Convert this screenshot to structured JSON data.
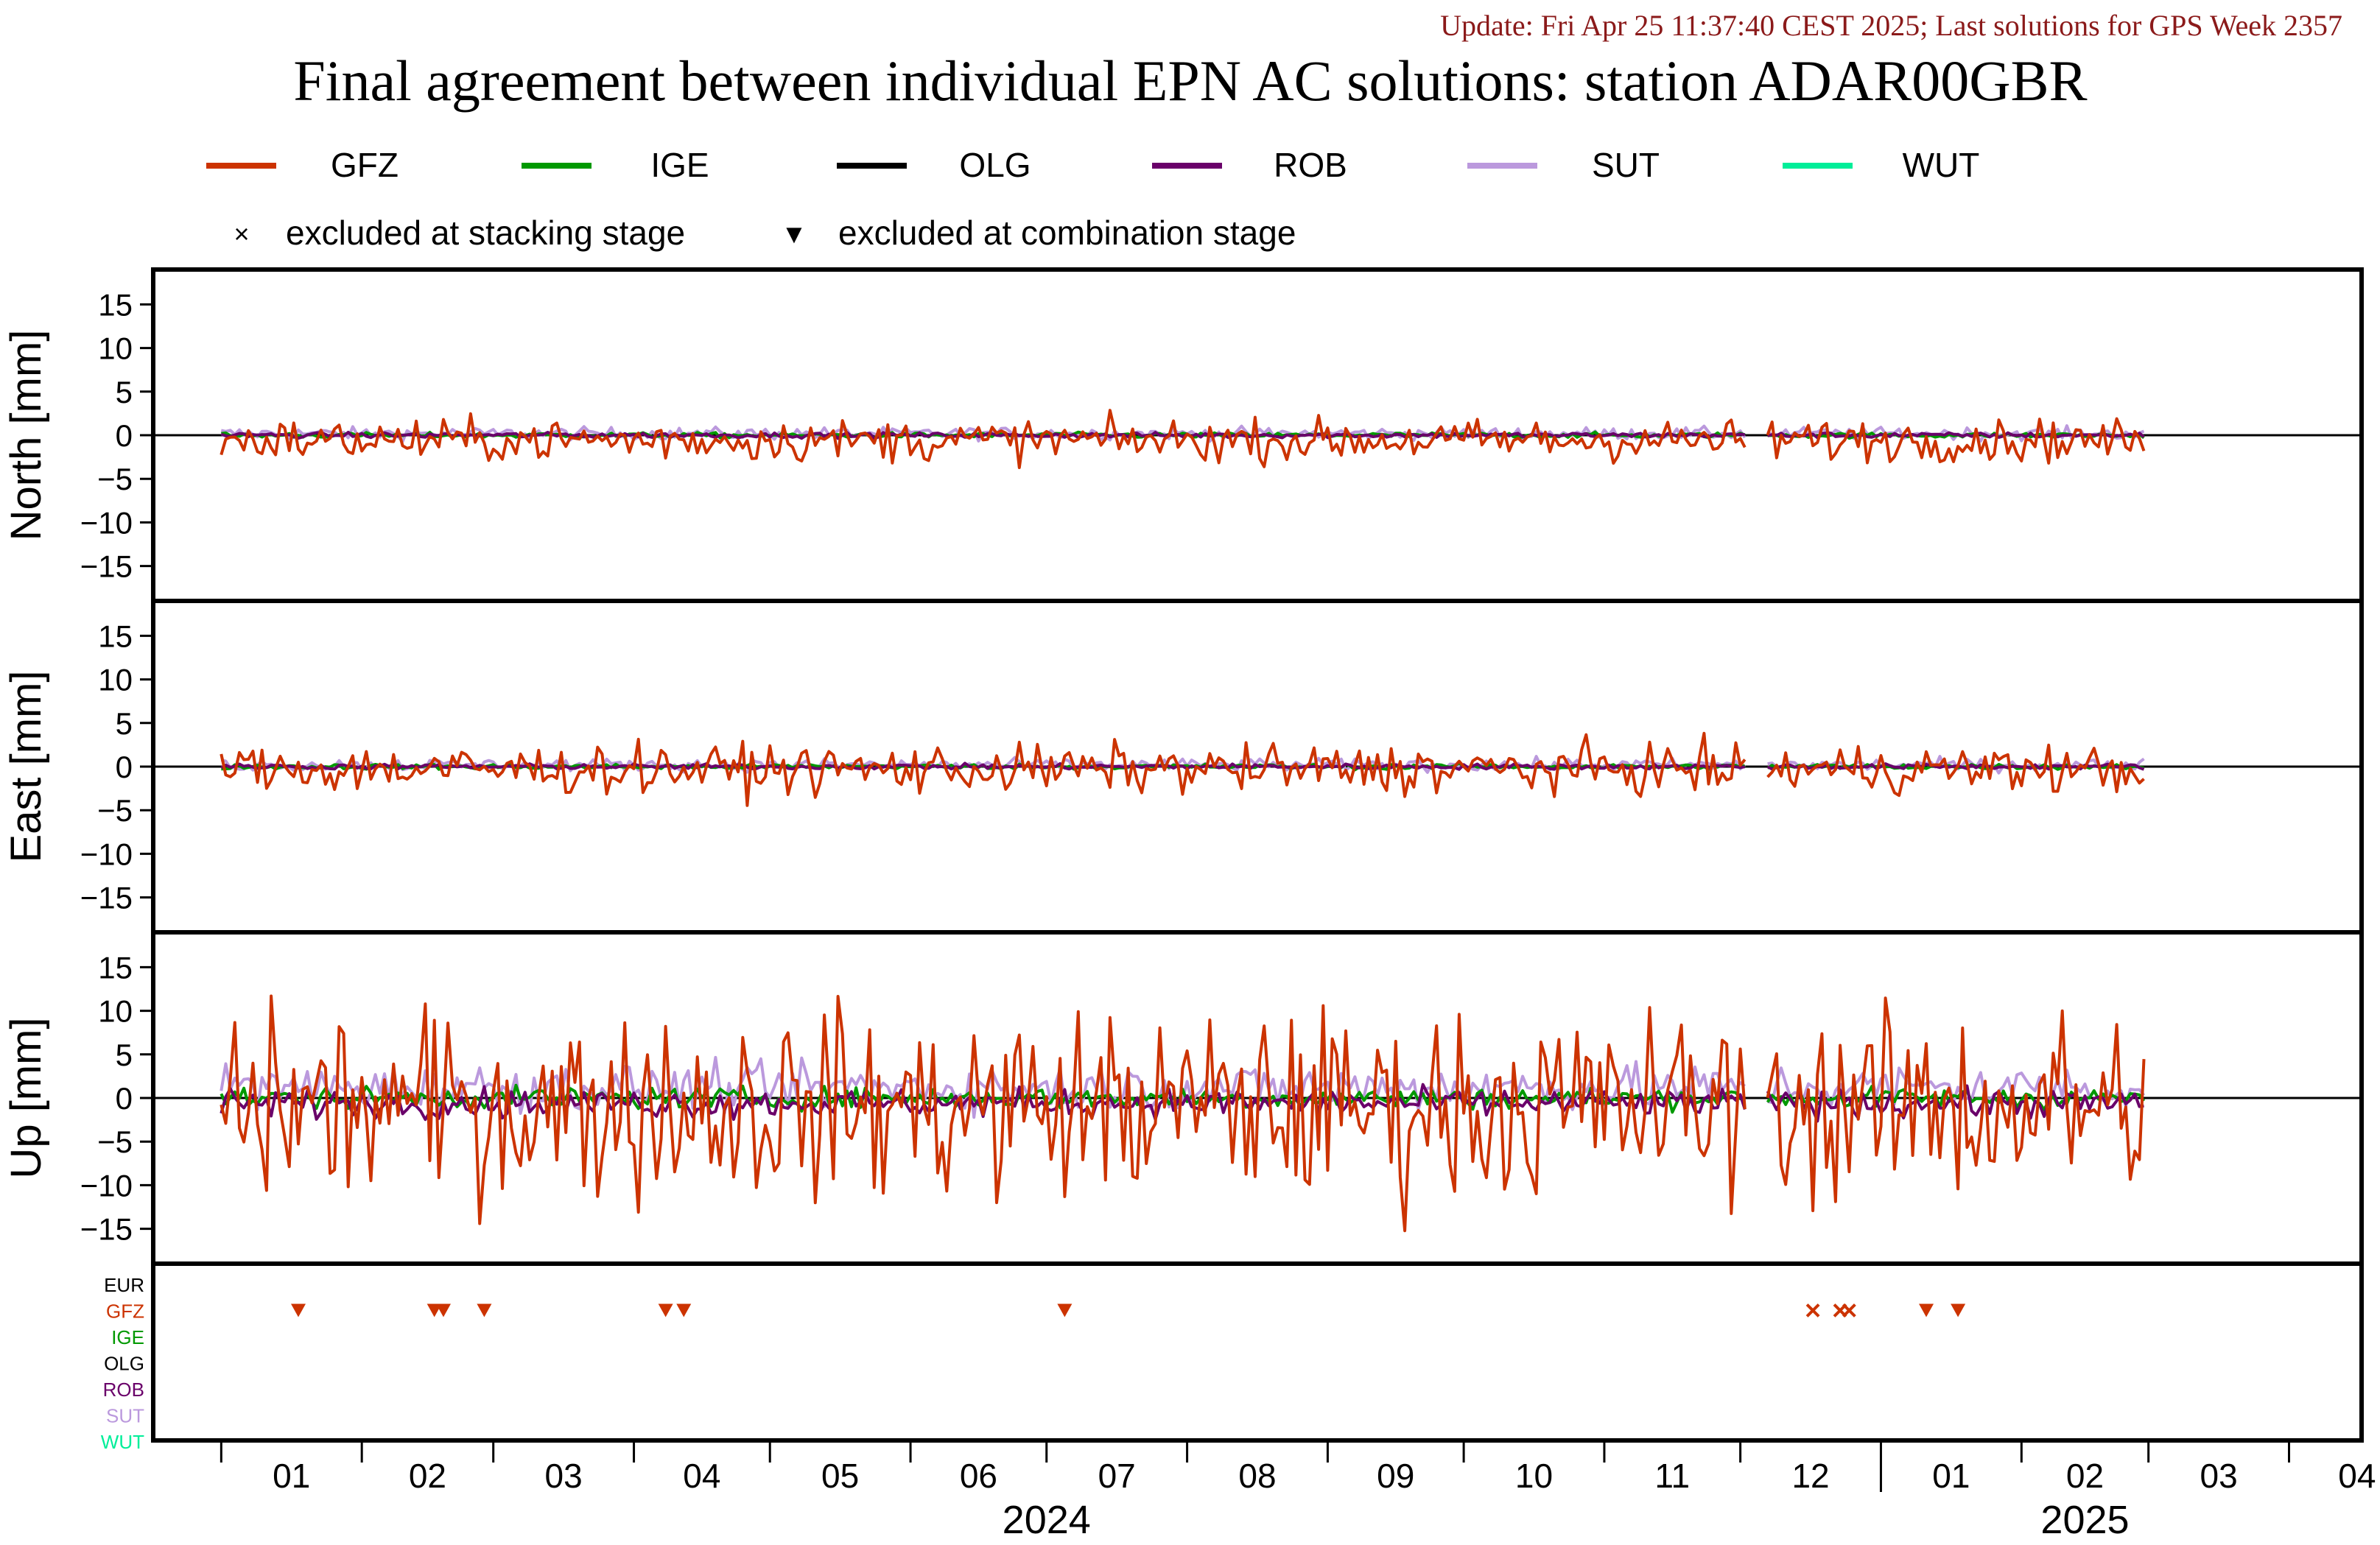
{
  "update_text": "Update: Fri Apr 25 11:37:40 CEST 2025; Last solutions for GPS Week 2357",
  "title": "Final agreement between individual EPN AC solutions: station ADAR00GBR",
  "colors": {
    "update": "#8b1a1a",
    "GFZ": "#cc3300",
    "IGE": "#009900",
    "OLG": "#000000",
    "ROB": "#6a006a",
    "SUT": "#bb99dd",
    "WUT": "#00ee99",
    "EUR": "#000000"
  },
  "legend": {
    "series": [
      "GFZ",
      "IGE",
      "OLG",
      "ROB",
      "SUT",
      "WUT"
    ],
    "markers": [
      {
        "symbol": "×",
        "label": "excluded at stacking stage"
      },
      {
        "symbol": "▼",
        "label": "excluded at combination stage"
      }
    ]
  },
  "chart_data": {
    "type": "line",
    "x_axis": {
      "month_ticks": [
        "01",
        "02",
        "03",
        "04",
        "05",
        "06",
        "07",
        "08",
        "09",
        "10",
        "11",
        "12",
        "01",
        "02",
        "03",
        "04"
      ],
      "years": [
        "2024",
        "2025"
      ]
    },
    "panels": [
      {
        "ylabel": "North [mm]",
        "ylim": [
          -19,
          19
        ],
        "yticks": [
          15,
          10,
          5,
          0,
          -5,
          -10,
          -15
        ],
        "gfz_amplitude": 1.2,
        "gfz_offset": -0.6
      },
      {
        "ylabel": "East [mm]",
        "ylim": [
          -19,
          19
        ],
        "yticks": [
          15,
          10,
          5,
          0,
          -5,
          -10,
          -15
        ],
        "gfz_amplitude": 1.4,
        "gfz_offset": -0.3
      },
      {
        "ylabel": "Up [mm]",
        "ylim": [
          -19,
          19
        ],
        "yticks": [
          15,
          10,
          5,
          0,
          -5,
          -10,
          -15
        ],
        "gfz_amplitude": 5.5,
        "gfz_offset": -1.0
      }
    ],
    "exclusion_rows": [
      "EUR",
      "GFZ",
      "IGE",
      "OLG",
      "ROB",
      "SUT",
      "WUT"
    ],
    "exclusions": [
      {
        "ac": "GFZ",
        "type": "combination",
        "date": "2024-01-18"
      },
      {
        "ac": "GFZ",
        "type": "combination",
        "date": "2024-02-17"
      },
      {
        "ac": "GFZ",
        "type": "combination",
        "date": "2024-02-19"
      },
      {
        "ac": "GFZ",
        "type": "combination",
        "date": "2024-02-28"
      },
      {
        "ac": "GFZ",
        "type": "combination",
        "date": "2024-04-08"
      },
      {
        "ac": "GFZ",
        "type": "combination",
        "date": "2024-04-12"
      },
      {
        "ac": "GFZ",
        "type": "combination",
        "date": "2024-07-05"
      },
      {
        "ac": "GFZ",
        "type": "stacking",
        "date": "2024-12-17"
      },
      {
        "ac": "GFZ",
        "type": "stacking",
        "date": "2024-12-23"
      },
      {
        "ac": "GFZ",
        "type": "stacking",
        "date": "2024-12-25"
      },
      {
        "ac": "GFZ",
        "type": "combination",
        "date": "2025-01-11"
      },
      {
        "ac": "GFZ",
        "type": "combination",
        "date": "2025-01-18"
      }
    ]
  }
}
